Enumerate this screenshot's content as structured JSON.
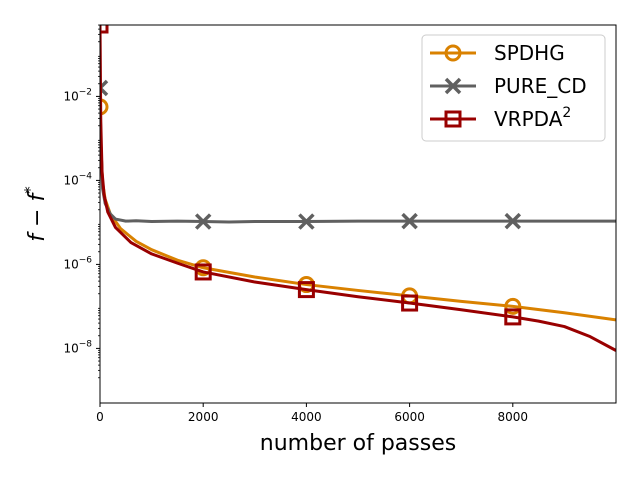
{
  "chart_data": {
    "type": "line",
    "title": "",
    "xlabel": "number of passes",
    "ylabel": "f − f*",
    "yscale": "log",
    "xlim": [
      0,
      10000
    ],
    "ylim_exp": [
      -9.3,
      -0.3
    ],
    "x_ticks": [
      {
        "value": 0,
        "label": "0"
      },
      {
        "value": 2000,
        "label": "2000"
      },
      {
        "value": 4000,
        "label": "4000"
      },
      {
        "value": 6000,
        "label": "6000"
      },
      {
        "value": 8000,
        "label": "8000"
      }
    ],
    "y_ticks": [
      {
        "exp": -2,
        "base": "10",
        "sup": "−2"
      },
      {
        "exp": -4,
        "base": "10",
        "sup": "−4"
      },
      {
        "exp": -6,
        "base": "10",
        "sup": "−6"
      },
      {
        "exp": -8,
        "base": "10",
        "sup": "−8"
      }
    ],
    "legend_position": "top-right",
    "series": [
      {
        "name": "SPDHG",
        "legend_base": "SPDHG",
        "legend_sup": "",
        "color": "#d98100",
        "marker": "circle",
        "points": [
          [
            0,
            -2.25
          ],
          [
            20,
            -3.3
          ],
          [
            50,
            -4.05
          ],
          [
            100,
            -4.45
          ],
          [
            200,
            -4.8
          ],
          [
            400,
            -5.15
          ],
          [
            700,
            -5.45
          ],
          [
            1000,
            -5.65
          ],
          [
            1500,
            -5.9
          ],
          [
            2000,
            -6.08
          ],
          [
            3000,
            -6.3
          ],
          [
            4000,
            -6.48
          ],
          [
            5000,
            -6.62
          ],
          [
            6000,
            -6.75
          ],
          [
            7000,
            -6.88
          ],
          [
            8000,
            -7.0
          ],
          [
            9000,
            -7.15
          ],
          [
            10000,
            -7.32
          ]
        ],
        "marker_points": [
          [
            0,
            -2.25
          ],
          [
            2000,
            -6.08
          ],
          [
            4000,
            -6.48
          ],
          [
            6000,
            -6.75
          ],
          [
            8000,
            -7.0
          ]
        ]
      },
      {
        "name": "PURE_CD",
        "legend_base": "PURE_CD",
        "legend_sup": "",
        "color": "#606060",
        "marker": "x",
        "points": [
          [
            0,
            -1.8
          ],
          [
            20,
            -3.2
          ],
          [
            50,
            -4.2
          ],
          [
            100,
            -4.55
          ],
          [
            200,
            -4.8
          ],
          [
            300,
            -4.92
          ],
          [
            500,
            -4.97
          ],
          [
            700,
            -4.96
          ],
          [
            1000,
            -4.98
          ],
          [
            1500,
            -4.97
          ],
          [
            2000,
            -4.98
          ],
          [
            2500,
            -4.99
          ],
          [
            3000,
            -4.98
          ],
          [
            4000,
            -4.98
          ],
          [
            5000,
            -4.97
          ],
          [
            6000,
            -4.97
          ],
          [
            7000,
            -4.97
          ],
          [
            8000,
            -4.97
          ],
          [
            9000,
            -4.97
          ],
          [
            10000,
            -4.97
          ]
        ],
        "marker_points": [
          [
            0,
            -1.8
          ],
          [
            2000,
            -4.98
          ],
          [
            4000,
            -4.98
          ],
          [
            6000,
            -4.97
          ],
          [
            8000,
            -4.97
          ]
        ]
      },
      {
        "name": "VRPDA2",
        "legend_base": "VRPDA",
        "legend_sup": "2",
        "color": "#990000",
        "marker": "square",
        "points": [
          [
            0,
            -0.3
          ],
          [
            15,
            -2.6
          ],
          [
            40,
            -3.8
          ],
          [
            80,
            -4.35
          ],
          [
            150,
            -4.75
          ],
          [
            300,
            -5.12
          ],
          [
            600,
            -5.48
          ],
          [
            1000,
            -5.75
          ],
          [
            1500,
            -5.97
          ],
          [
            2000,
            -6.18
          ],
          [
            3000,
            -6.42
          ],
          [
            4000,
            -6.6
          ],
          [
            5000,
            -6.77
          ],
          [
            6000,
            -6.92
          ],
          [
            7000,
            -7.08
          ],
          [
            8000,
            -7.25
          ],
          [
            8500,
            -7.35
          ],
          [
            9000,
            -7.48
          ],
          [
            9500,
            -7.72
          ],
          [
            10000,
            -8.05
          ]
        ],
        "marker_points": [
          [
            0,
            -0.3
          ],
          [
            2000,
            -6.18
          ],
          [
            4000,
            -6.6
          ],
          [
            6000,
            -6.92
          ],
          [
            8000,
            -7.25
          ]
        ]
      }
    ]
  }
}
